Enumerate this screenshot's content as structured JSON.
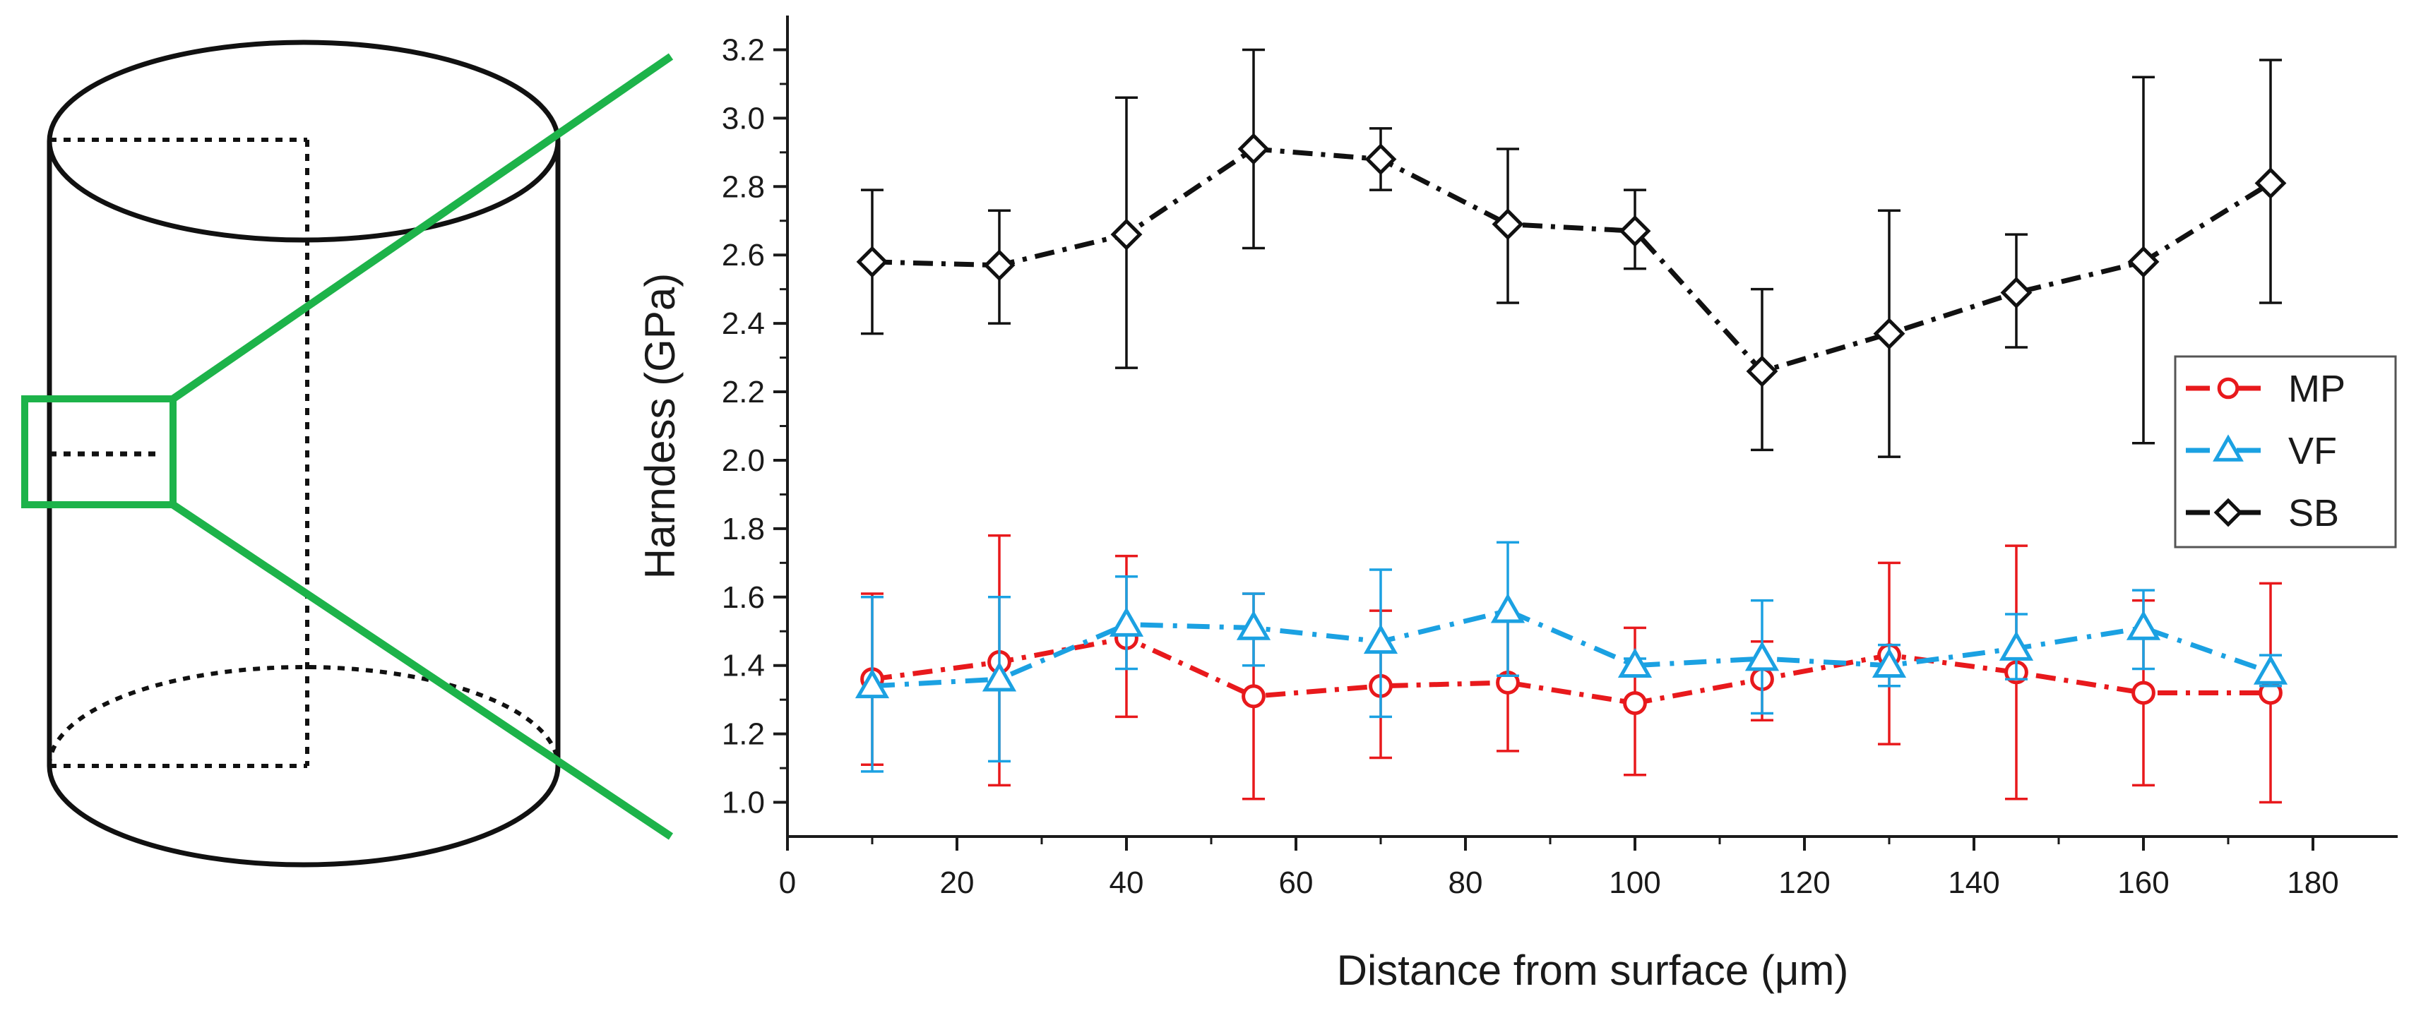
{
  "chart_data": {
    "type": "line",
    "title": "",
    "xlabel": "Distance from surface (μm)",
    "ylabel": "Harndess (GPa)",
    "xlim": [
      0,
      190
    ],
    "ylim": [
      0.9,
      3.3
    ],
    "x_ticks": [
      "0",
      "20",
      "40",
      "60",
      "80",
      "100",
      "120",
      "140",
      "160",
      "180"
    ],
    "y_ticks": [
      "1.0",
      "1.2",
      "1.4",
      "1.6",
      "1.8",
      "2.0",
      "2.2",
      "2.4",
      "2.6",
      "2.8",
      "3.0",
      "3.2"
    ],
    "grid": false,
    "legend_position": "right",
    "x": [
      10,
      25,
      40,
      55,
      70,
      85,
      100,
      115,
      130,
      145,
      160,
      175
    ],
    "series": [
      {
        "name": "MP",
        "color": "#e8191c",
        "marker": "circle",
        "values": [
          1.36,
          1.41,
          1.48,
          1.31,
          1.34,
          1.35,
          1.29,
          1.36,
          1.43,
          1.38,
          1.32,
          1.32
        ],
        "error_low": [
          1.11,
          1.05,
          1.25,
          1.01,
          1.13,
          1.15,
          1.08,
          1.24,
          1.17,
          1.01,
          1.05,
          1.0
        ],
        "error_high": [
          1.61,
          1.78,
          1.72,
          1.61,
          1.56,
          1.55,
          1.51,
          1.47,
          1.7,
          1.75,
          1.59,
          1.64
        ]
      },
      {
        "name": "VF",
        "color": "#1ba1e2",
        "marker": "triangle",
        "values": [
          1.34,
          1.36,
          1.52,
          1.51,
          1.47,
          1.56,
          1.4,
          1.42,
          1.4,
          1.45,
          1.51,
          1.38
        ],
        "error_low": [
          1.09,
          1.12,
          1.39,
          1.4,
          1.25,
          1.37,
          1.38,
          1.26,
          1.34,
          1.36,
          1.39,
          1.34
        ],
        "error_high": [
          1.6,
          1.6,
          1.66,
          1.61,
          1.68,
          1.76,
          1.42,
          1.59,
          1.46,
          1.55,
          1.62,
          1.43
        ]
      },
      {
        "name": "SB",
        "color": "#111111",
        "marker": "diamond",
        "values": [
          2.58,
          2.57,
          2.66,
          2.91,
          2.88,
          2.69,
          2.67,
          2.26,
          2.37,
          2.49,
          2.58,
          2.81
        ],
        "error_low": [
          2.37,
          2.4,
          2.27,
          2.62,
          2.79,
          2.46,
          2.56,
          2.03,
          2.01,
          2.33,
          2.05,
          2.46
        ],
        "error_high": [
          2.79,
          2.73,
          3.06,
          3.2,
          2.97,
          2.91,
          2.79,
          2.5,
          2.73,
          2.66,
          3.12,
          3.17
        ]
      }
    ]
  },
  "illustration": {
    "cylinder_color": "#111111",
    "zoom_color": "#1db34a"
  }
}
